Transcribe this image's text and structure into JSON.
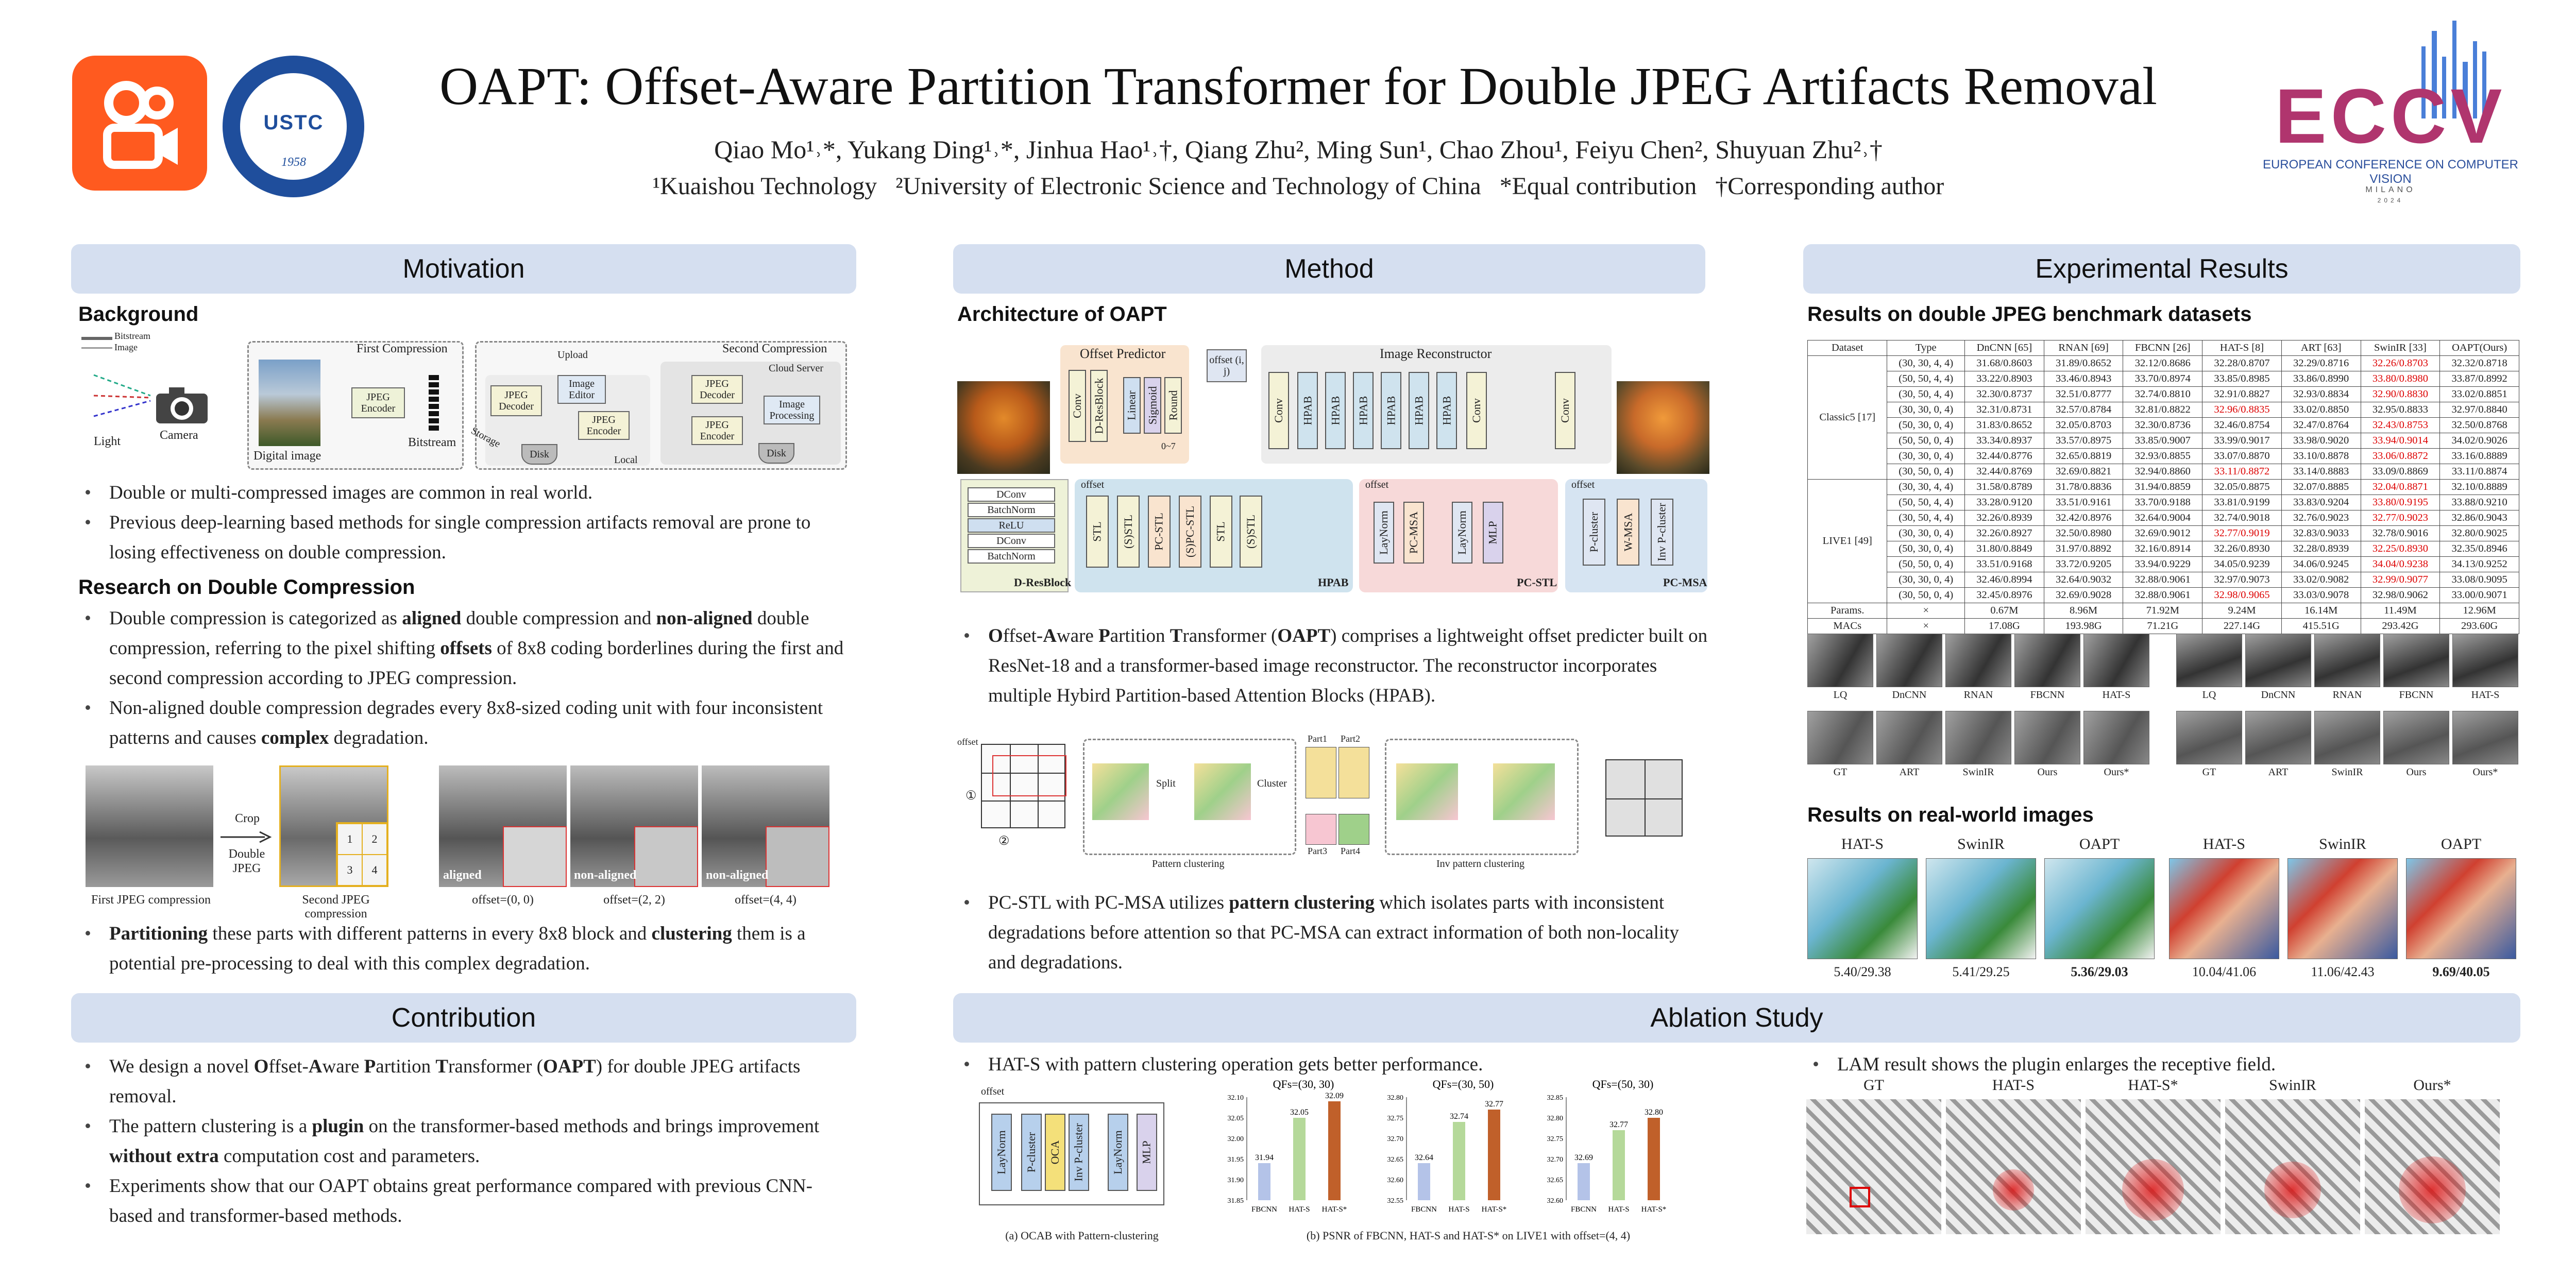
{
  "header": {
    "title": "OAPT: Offset-Aware Partition Transformer for Double JPEG Artifacts Removal",
    "authors": "Qiao Mo¹˒*, Yukang Ding¹˒*, Jinhua Hao¹˒†, Qiang Zhu², Ming Sun¹, Chao Zhou¹, Feiyu Chen², Shuyuan Zhu²˒†",
    "affiliations": "¹Kuaishou Technology   ²University of Electronic Science and Technology of China   *Equal contribution   †Corresponding author",
    "ustc_text": "USTC",
    "ustc_year": "1958",
    "eccv_logo": "ECCV",
    "eccv_name": "EUROPEAN CONFERENCE ON COMPUTER VISION",
    "eccv_city": "MILANO",
    "eccv_year": "2024"
  },
  "motivation": {
    "banner": "Motivation",
    "background_head": "Background",
    "fig1": {
      "legend_bitstream": "Bitstream",
      "legend_image": "Image",
      "first_compression": "First Compression",
      "second_compression": "Second Compression",
      "upload": "Upload",
      "cloud_server": "Cloud Server",
      "light": "Light",
      "camera": "Camera",
      "digital_image": "Digital image",
      "jpeg_encoder": "JPEG Encoder",
      "bitstream": "Bitstream",
      "storage": "Storage",
      "local": "Local",
      "jpeg_decoder": "JPEG Decoder",
      "image_editor": "Image Editor",
      "disk": "Disk",
      "image_processing": "Image Processing"
    },
    "bg_bullets": [
      "Double or multi-compressed images are common in real world.",
      "Previous deep-learning based methods for single compression artifacts removal are prone to losing effectiveness on double compression."
    ],
    "research_head": "Research on Double Compression",
    "research_bullets_html": [
      "Double compression is categorized as <b>aligned</b> double compression and <b>non-aligned</b> double compression, referring to the pixel shifting <b>offsets</b> of 8x8 coding borderlines during the first and second compression according to JPEG compression.",
      "Non-aligned double compression degrades every 8x8-sized coding unit with four inconsistent patterns and causes <b>complex</b> degradation."
    ],
    "fig2": {
      "cap1": "First JPEG compression",
      "crop": "Crop",
      "double_jpeg": "Double JPEG",
      "cap2": "Second JPEG compression",
      "cells": [
        "1",
        "2",
        "3",
        "4"
      ],
      "tags": [
        "aligned",
        "non-aligned",
        "non-aligned"
      ],
      "offsets": [
        "offset=(0, 0)",
        "offset=(2, 2)",
        "offset=(4, 4)"
      ]
    },
    "part_bullet_html": "<b>Partitioning</b> these parts with different patterns in every 8x8 block and <b>clustering</b> them is a potential pre-processing to deal with this complex degradation."
  },
  "contribution": {
    "banner": "Contribution",
    "bullets_html": [
      "We design a novel <b>O</b>ffset-<b>A</b>ware <b>P</b>artition <b>T</b>ransformer (<b>OAPT</b>) for double JPEG artifacts removal.",
      "The pattern clustering is a <b>plugin</b> on the transformer-based methods and brings improvement <b>without extra</b> computation cost and parameters.",
      "Experiments show that our OAPT obtains great performance compared with previous CNN-based and transformer-based methods."
    ]
  },
  "method": {
    "banner": "Method",
    "arch_head": "Architecture of OAPT",
    "arch": {
      "offset_predictor": "Offset Predictor",
      "image_reconstructor": "Image Reconstructor",
      "offset_ij": "offset (i, j)",
      "range": "0~7",
      "op_boxes": [
        "Conv",
        "D-ResBlock",
        "Linear",
        "Sigmoid",
        "Round"
      ],
      "main_boxes": [
        "Conv",
        "HPAB",
        "HPAB",
        "HPAB",
        "HPAB",
        "HPAB",
        "HPAB",
        "Conv",
        "Conv"
      ],
      "dres": [
        "DConv",
        "BatchNorm",
        "ReLU",
        "DConv",
        "BatchNorm"
      ],
      "dres_label": "D-ResBlock",
      "offset": "offset",
      "hpab_boxes": [
        "STL",
        "(S)STL",
        "PC-STL",
        "(S)PC-STL",
        "STL",
        "(S)STL"
      ],
      "hpab_label": "HPAB",
      "pcstl_boxes": [
        "LayNorm",
        "PC-MSA",
        "LayNorm",
        "MLP"
      ],
      "pcstl_label": "PC-STL",
      "pcmsa_boxes": [
        "P-cluster",
        "W-MSA",
        "Inv P-cluster"
      ],
      "pcmsa_label": "PC-MSA"
    },
    "bullet1_html": "<b>O</b>ffset-<b>A</b>ware <b>P</b>artition <b>T</b>ransformer (<b>OAPT</b>) comprises a lightweight offset predicter built on ResNet-18 and a transformer-based image reconstructor. The reconstructor incorporates multiple Hybird Partition-based Attention Blocks (HPAB).",
    "cluster": {
      "offset": "offset",
      "split": "Split",
      "cluster": "Cluster",
      "parts": [
        "Part1",
        "Part2",
        "Part3",
        "Part4"
      ],
      "pattern": "Pattern clustering",
      "inv": "Inv pattern clustering",
      "n1": "①",
      "n2": "②"
    },
    "bullet2_html": "PC-STL with PC-MSA utilizes <b>pattern clustering</b> which isolates parts with inconsistent degradations before attention so that PC-MSA can extract information of both non-locality and degradations."
  },
  "ablation": {
    "banner": "Ablation Study",
    "bullet_left": "HAT-S with pattern clustering operation gets better performance.",
    "ocab": {
      "offset": "offset",
      "boxes": [
        "LayNorm",
        "P-cluster",
        "OCA",
        "Inv P-cluster",
        "LayNorm",
        "MLP"
      ],
      "caption": "(a) OCAB with Pattern-clustering"
    },
    "bars_caption": "(b) PSNR of FBCNN, HAT-S and HAT-S* on LIVE1 with offset=(4, 4)",
    "bullet_right": "LAM result shows the plugin enlarges the receptive field.",
    "lam_labels": [
      "GT",
      "HAT-S",
      "HAT-S*",
      "SwinIR",
      "Ours*"
    ]
  },
  "experimental": {
    "banner": "Experimental Results",
    "bench_head": "Results on double JPEG benchmark datasets",
    "table": {
      "headers": [
        "Dataset",
        "Type",
        "DnCNN [65]",
        "RNAN [69]",
        "FBCNN [26]",
        "HAT-S [8]",
        "ART [63]",
        "SwinIR [33]",
        "OAPT(Ours)"
      ],
      "groups": [
        {
          "name": "Classic5 [17]",
          "rows": [
            [
              "(30, 30, 4, 4)",
              "31.68/0.8603",
              "31.89/0.8652",
              "32.12/0.8686",
              "32.28/0.8707",
              "32.29/0.8716",
              "32.26/0.8703",
              "32.32/0.8718"
            ],
            [
              "(50, 50, 4, 4)",
              "33.22/0.8903",
              "33.46/0.8943",
              "33.70/0.8974",
              "33.85/0.8985",
              "33.86/0.8990",
              "33.80/0.8980",
              "33.87/0.8992"
            ],
            [
              "(30, 50, 4, 4)",
              "32.30/0.8737",
              "32.51/0.8777",
              "32.74/0.8810",
              "32.91/0.8827",
              "32.93/0.8834",
              "32.90/0.8830",
              "33.02/0.8851"
            ],
            [
              "(30, 30, 0, 4)",
              "32.31/0.8731",
              "32.57/0.8784",
              "32.81/0.8822",
              "32.96/0.8835",
              "33.02/0.8850",
              "32.95/0.8833",
              "32.97/0.8840"
            ],
            [
              "(50, 30, 0, 4)",
              "31.83/0.8652",
              "32.05/0.8703",
              "32.30/0.8736",
              "32.46/0.8754",
              "32.47/0.8764",
              "32.43/0.8753",
              "32.50/0.8768"
            ],
            [
              "(50, 50, 0, 4)",
              "33.34/0.8937",
              "33.57/0.8975",
              "33.85/0.9007",
              "33.99/0.9017",
              "33.98/0.9020",
              "33.94/0.9014",
              "34.02/0.9026"
            ],
            [
              "(30, 30, 0, 4)",
              "32.44/0.8776",
              "32.65/0.8819",
              "32.93/0.8855",
              "33.07/0.8870",
              "33.10/0.8878",
              "33.06/0.8872",
              "33.16/0.8889"
            ],
            [
              "(30, 50, 0, 4)",
              "32.44/0.8769",
              "32.69/0.8821",
              "32.94/0.8860",
              "33.11/0.8872",
              "33.14/0.8883",
              "33.09/0.8869",
              "33.11/0.8874"
            ]
          ],
          "red": [
            [
              6
            ],
            [
              6
            ],
            [
              6
            ],
            [
              4
            ],
            [
              6
            ],
            [
              6
            ],
            [
              6
            ],
            [
              4
            ]
          ]
        },
        {
          "name": "LIVE1 [49]",
          "rows": [
            [
              "(30, 30, 4, 4)",
              "31.58/0.8789",
              "31.78/0.8836",
              "31.94/0.8859",
              "32.05/0.8875",
              "32.07/0.8885",
              "32.04/0.8871",
              "32.10/0.8889"
            ],
            [
              "(50, 50, 4, 4)",
              "33.28/0.9120",
              "33.51/0.9161",
              "33.70/0.9188",
              "33.81/0.9199",
              "33.83/0.9204",
              "33.80/0.9195",
              "33.88/0.9210"
            ],
            [
              "(30, 50, 4, 4)",
              "32.26/0.8939",
              "32.42/0.8976",
              "32.64/0.9004",
              "32.74/0.9018",
              "32.76/0.9023",
              "32.77/0.9023",
              "32.86/0.9043"
            ],
            [
              "(30, 30, 0, 4)",
              "32.26/0.8927",
              "32.50/0.8980",
              "32.69/0.9012",
              "32.77/0.9019",
              "32.83/0.9033",
              "32.78/0.9016",
              "32.80/0.9025"
            ],
            [
              "(50, 30, 0, 4)",
              "31.80/0.8849",
              "31.97/0.8892",
              "32.16/0.8914",
              "32.26/0.8930",
              "32.28/0.8939",
              "32.25/0.8930",
              "32.35/0.8946"
            ],
            [
              "(50, 50, 0, 4)",
              "33.51/0.9168",
              "33.72/0.9205",
              "33.94/0.9229",
              "34.05/0.9239",
              "34.06/0.9245",
              "34.04/0.9238",
              "34.13/0.9252"
            ],
            [
              "(30, 30, 0, 4)",
              "32.46/0.8994",
              "32.64/0.9032",
              "32.88/0.9061",
              "32.97/0.9073",
              "33.02/0.9082",
              "32.99/0.9077",
              "33.08/0.9095"
            ],
            [
              "(30, 50, 0, 4)",
              "32.45/0.8976",
              "32.69/0.9028",
              "32.88/0.9061",
              "32.98/0.9065",
              "33.03/0.9078",
              "32.98/0.9062",
              "33.00/0.9071"
            ]
          ],
          "red": [
            [
              6
            ],
            [
              6
            ],
            [
              6
            ],
            [
              4
            ],
            [
              6
            ],
            [
              6
            ],
            [
              6
            ],
            [
              4
            ]
          ]
        }
      ],
      "params": [
        "Params.",
        "×",
        "0.67M",
        "8.96M",
        "71.92M",
        "9.24M",
        "16.14M",
        "11.49M",
        "12.96M"
      ],
      "macs": [
        "MACs",
        "×",
        "17.08G",
        "193.98G",
        "71.21G",
        "227.14G",
        "415.51G",
        "293.42G",
        "293.60G"
      ]
    },
    "grid_labels_top": [
      "LQ",
      "DnCNN",
      "RNAN",
      "FBCNN",
      "HAT-S"
    ],
    "grid_labels_bottom": [
      "GT",
      "ART",
      "SwinIR",
      "Ours",
      "Ours*"
    ],
    "real_head": "Results on real-world images",
    "real_labels": [
      "HAT-S",
      "SwinIR",
      "OAPT",
      "HAT-S",
      "SwinIR",
      "OAPT"
    ],
    "real_scores": [
      "5.40/29.38",
      "5.41/29.25",
      "5.36/29.03",
      "10.04/41.06",
      "11.06/42.43",
      "9.69/40.05"
    ]
  },
  "colors": {
    "banner": "#d5dff0",
    "kuaishou": "#ff5a1f",
    "ustc": "#1f4e9c",
    "red": "#d00000",
    "hpab_bg": "#cfe3ee",
    "pcstl_bg": "#f7d9d9",
    "pcmsa_bg": "#d6e4f2",
    "op_bg": "#f9e4cf",
    "bar_fbcnn": "#b4c3e8",
    "bar_hats": "#b5d99a",
    "bar_hatsstar": "#c0602a"
  },
  "chart_data": [
    {
      "type": "bar",
      "title": "QFs=(30, 30)",
      "categories": [
        "FBCNN",
        "HAT-S",
        "HAT-S*"
      ],
      "values": [
        31.94,
        32.05,
        32.09
      ],
      "ylim": [
        31.85,
        32.1
      ],
      "yticks": [
        31.85,
        31.9,
        31.95,
        32.0,
        32.05,
        32.1
      ]
    },
    {
      "type": "bar",
      "title": "QFs=(30, 50)",
      "categories": [
        "FBCNN",
        "HAT-S",
        "HAT-S*"
      ],
      "values": [
        32.64,
        32.74,
        32.77
      ],
      "ylim": [
        32.55,
        32.8
      ],
      "yticks": [
        32.55,
        32.6,
        32.65,
        32.7,
        32.75,
        32.8
      ]
    },
    {
      "type": "bar",
      "title": "QFs=(50, 30)",
      "categories": [
        "FBCNN",
        "HAT-S",
        "HAT-S*"
      ],
      "values": [
        32.69,
        32.77,
        32.8
      ],
      "ylim": [
        32.6,
        32.85
      ],
      "yticks": [
        32.6,
        32.65,
        32.7,
        32.75,
        32.8,
        32.85
      ]
    }
  ]
}
